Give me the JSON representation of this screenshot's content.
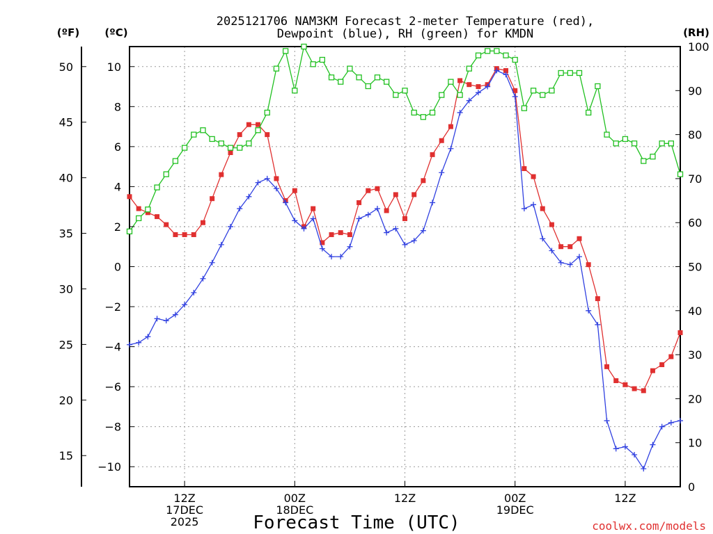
{
  "chart_data": {
    "type": "line",
    "title_lines": [
      "2025121706 NAM3KM Forecast 2-meter Temperature (red),",
      "Dewpoint (blue), RH (green) for KMDN"
    ],
    "xlabel": "Forecast Time (UTC)",
    "left_outer_axis": {
      "unit_label": "(ºF)",
      "ticks": [
        15,
        20,
        25,
        30,
        35,
        40,
        45,
        50
      ]
    },
    "left_axis": {
      "unit_label": "(ºC)",
      "range": [
        -11,
        11
      ],
      "ticks": [
        -10,
        -8,
        -6,
        -4,
        -2,
        0,
        2,
        4,
        6,
        8,
        10
      ]
    },
    "right_axis": {
      "unit_label": "(RH)",
      "range": [
        0,
        100
      ],
      "ticks": [
        0,
        10,
        20,
        30,
        40,
        50,
        60,
        70,
        80,
        90,
        100
      ]
    },
    "x_range_hours": [
      6,
      66
    ],
    "x_ticks": [
      {
        "hour": 12,
        "lines": [
          "12Z",
          "17DEC",
          "2025"
        ]
      },
      {
        "hour": 24,
        "lines": [
          "00Z",
          "18DEC"
        ]
      },
      {
        "hour": 36,
        "lines": [
          "12Z"
        ]
      },
      {
        "hour": 48,
        "lines": [
          "00Z",
          "19DEC"
        ]
      },
      {
        "hour": 60,
        "lines": [
          "12Z"
        ]
      }
    ],
    "grid": true,
    "credit": "coolwx.com/models",
    "series": [
      {
        "name": "Temperature",
        "unit": "°C",
        "color": "#e03030",
        "marker": "filled-square",
        "x": [
          6,
          7,
          8,
          9,
          10,
          11,
          12,
          13,
          14,
          15,
          16,
          17,
          18,
          19,
          20,
          21,
          22,
          23,
          24,
          25,
          26,
          27,
          28,
          29,
          30,
          31,
          32,
          33,
          34,
          35,
          36,
          37,
          38,
          39,
          40,
          41,
          42,
          43,
          44,
          45,
          46,
          47,
          48,
          49,
          50,
          51,
          52,
          53,
          54,
          55,
          56,
          57,
          58,
          59,
          60,
          61,
          62,
          63,
          64,
          65,
          66
        ],
        "values": [
          3.5,
          2.9,
          2.7,
          2.5,
          2.1,
          1.6,
          1.6,
          1.6,
          2.2,
          3.4,
          4.6,
          5.7,
          6.6,
          7.1,
          7.1,
          6.6,
          4.4,
          3.3,
          3.8,
          2.0,
          2.9,
          1.2,
          1.6,
          1.7,
          1.6,
          3.2,
          3.8,
          3.9,
          2.8,
          3.6,
          2.4,
          3.6,
          4.3,
          5.6,
          6.3,
          7.0,
          9.3,
          9.1,
          9.0,
          9.1,
          9.9,
          9.8,
          8.8,
          4.9,
          4.5,
          2.9,
          2.1,
          1.0,
          1.0,
          1.4,
          0.1,
          -1.6,
          -5.0,
          -5.7,
          -5.9,
          -6.1,
          -6.2,
          -5.2,
          -4.9,
          -4.5,
          -3.3
        ]
      },
      {
        "name": "Dewpoint",
        "unit": "°C",
        "color": "#3040e0",
        "marker": "plus",
        "x": [
          6,
          7,
          8,
          9,
          10,
          11,
          12,
          13,
          14,
          15,
          16,
          17,
          18,
          19,
          20,
          21,
          22,
          23,
          24,
          25,
          26,
          27,
          28,
          29,
          30,
          31,
          32,
          33,
          34,
          35,
          36,
          37,
          38,
          39,
          40,
          41,
          42,
          43,
          44,
          45,
          46,
          47,
          48,
          49,
          50,
          51,
          52,
          53,
          54,
          55,
          56,
          57,
          58,
          59,
          60,
          61,
          62,
          63,
          64,
          65,
          66
        ],
        "values": [
          -3.9,
          -3.8,
          -3.5,
          -2.6,
          -2.7,
          -2.4,
          -1.9,
          -1.3,
          -0.6,
          0.2,
          1.1,
          2.0,
          2.9,
          3.5,
          4.2,
          4.4,
          3.9,
          3.2,
          2.3,
          1.9,
          2.4,
          0.9,
          0.5,
          0.5,
          1.0,
          2.4,
          2.6,
          2.9,
          1.7,
          1.9,
          1.1,
          1.3,
          1.8,
          3.2,
          4.7,
          5.9,
          7.7,
          8.3,
          8.7,
          9.0,
          9.8,
          9.6,
          8.5,
          2.9,
          3.1,
          1.4,
          0.8,
          0.2,
          0.1,
          0.5,
          -2.2,
          -2.9,
          -7.7,
          -9.1,
          -9.0,
          -9.4,
          -10.1,
          -8.9,
          -8.0,
          -7.8,
          -7.7
        ]
      },
      {
        "name": "RH",
        "unit": "%",
        "color": "#20c020",
        "marker": "open-square",
        "x": [
          6,
          7,
          8,
          9,
          10,
          11,
          12,
          13,
          14,
          15,
          16,
          17,
          18,
          19,
          20,
          21,
          22,
          23,
          24,
          25,
          26,
          27,
          28,
          29,
          30,
          31,
          32,
          33,
          34,
          35,
          36,
          37,
          38,
          39,
          40,
          41,
          42,
          43,
          44,
          45,
          46,
          47,
          48,
          49,
          50,
          51,
          52,
          53,
          54,
          55,
          56,
          57,
          58,
          59,
          60,
          61,
          62,
          63,
          64,
          65,
          66
        ],
        "values": [
          58,
          61,
          63,
          68,
          71,
          74,
          77,
          80,
          81,
          79,
          78,
          77,
          77,
          78,
          81,
          85,
          95,
          99,
          90,
          100,
          96,
          97,
          93,
          92,
          95,
          93,
          91,
          93,
          92,
          89,
          90,
          85,
          84,
          85,
          89,
          92,
          89,
          95,
          98,
          99,
          99,
          98,
          97,
          86,
          90,
          89,
          90,
          94,
          94,
          94,
          85,
          91,
          80,
          78,
          79,
          78,
          74,
          75,
          78,
          78,
          71
        ]
      }
    ]
  }
}
